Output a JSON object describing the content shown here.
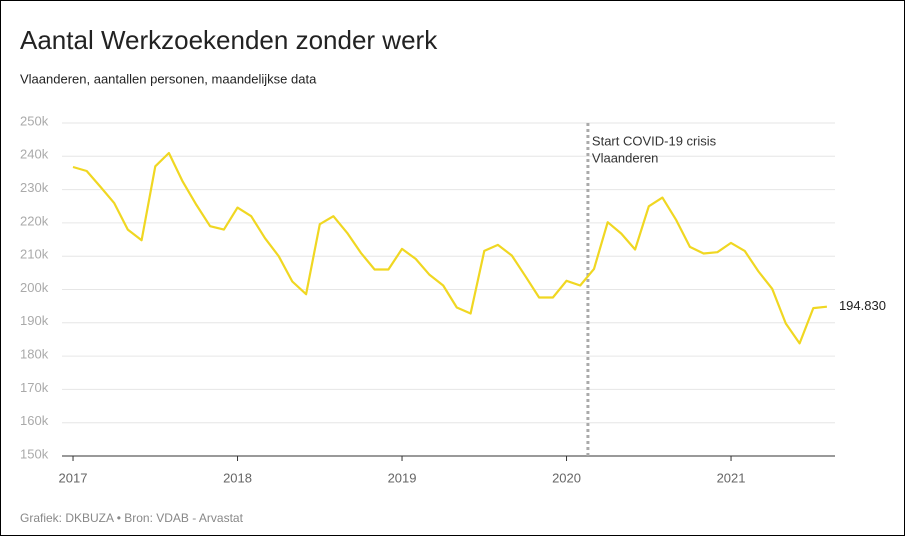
{
  "chart_data": {
    "type": "line",
    "title": "Aantal Werkzoekenden zonder werk",
    "subtitle": "Vlaanderen, aantallen personen, maandelijkse data",
    "source": "Grafiek: DKBUZA • Bron: VDAB - Arvastat",
    "x": [
      2017,
      2017.083,
      2017.167,
      2017.25,
      2017.333,
      2017.417,
      2017.5,
      2017.583,
      2017.667,
      2017.75,
      2017.833,
      2017.917,
      2018,
      2018.083,
      2018.167,
      2018.25,
      2018.333,
      2018.417,
      2018.5,
      2018.583,
      2018.667,
      2018.75,
      2018.833,
      2018.917,
      2019,
      2019.083,
      2019.167,
      2019.25,
      2019.333,
      2019.417,
      2019.5,
      2019.583,
      2019.667,
      2019.75,
      2019.833,
      2019.917,
      2020,
      2020.083,
      2020.167,
      2020.25,
      2020.333,
      2020.417,
      2020.5,
      2020.583,
      2020.667,
      2020.75,
      2020.833,
      2020.917,
      2021,
      2021.083,
      2021.167,
      2021.25,
      2021.333,
      2021.417,
      2021.5,
      2021.583
    ],
    "values": [
      236800,
      235600,
      230800,
      226000,
      218000,
      214800,
      237000,
      241000,
      232400,
      225400,
      219000,
      218000,
      224600,
      222000,
      215400,
      210000,
      202400,
      198600,
      219600,
      222000,
      217000,
      211000,
      206000,
      206000,
      212200,
      209200,
      204400,
      201200,
      194600,
      192800,
      211600,
      213400,
      210200,
      204000,
      197600,
      197600,
      202600,
      201200,
      206200,
      220200,
      216800,
      212000,
      225000,
      227600,
      220800,
      212800,
      210800,
      211200,
      214000,
      211600,
      205400,
      200200,
      189800,
      183800,
      194400,
      194830
    ],
    "last_value_label": "194.830",
    "color": "#f0d722",
    "xlim": [
      2016.933,
      2021.632
    ],
    "xticks": [
      2017,
      2018,
      2019,
      2020,
      2021
    ],
    "ylim": [
      150000,
      250000
    ],
    "yticks": [
      {
        "value": 150000,
        "label": "150k"
      },
      {
        "value": 160000,
        "label": "160k"
      },
      {
        "value": 170000,
        "label": "170k"
      },
      {
        "value": 180000,
        "label": "180k"
      },
      {
        "value": 190000,
        "label": "190k"
      },
      {
        "value": 200000,
        "label": "200k"
      },
      {
        "value": 210000,
        "label": "210k"
      },
      {
        "value": 220000,
        "label": "220k"
      },
      {
        "value": 230000,
        "label": "230k"
      },
      {
        "value": 240000,
        "label": "240k"
      },
      {
        "value": 250000,
        "label": "250k"
      }
    ],
    "grid": true,
    "annotation": {
      "x": 2020.13,
      "lines": [
        "Start COVID-19 crisis",
        "Vlaanderen"
      ]
    }
  }
}
